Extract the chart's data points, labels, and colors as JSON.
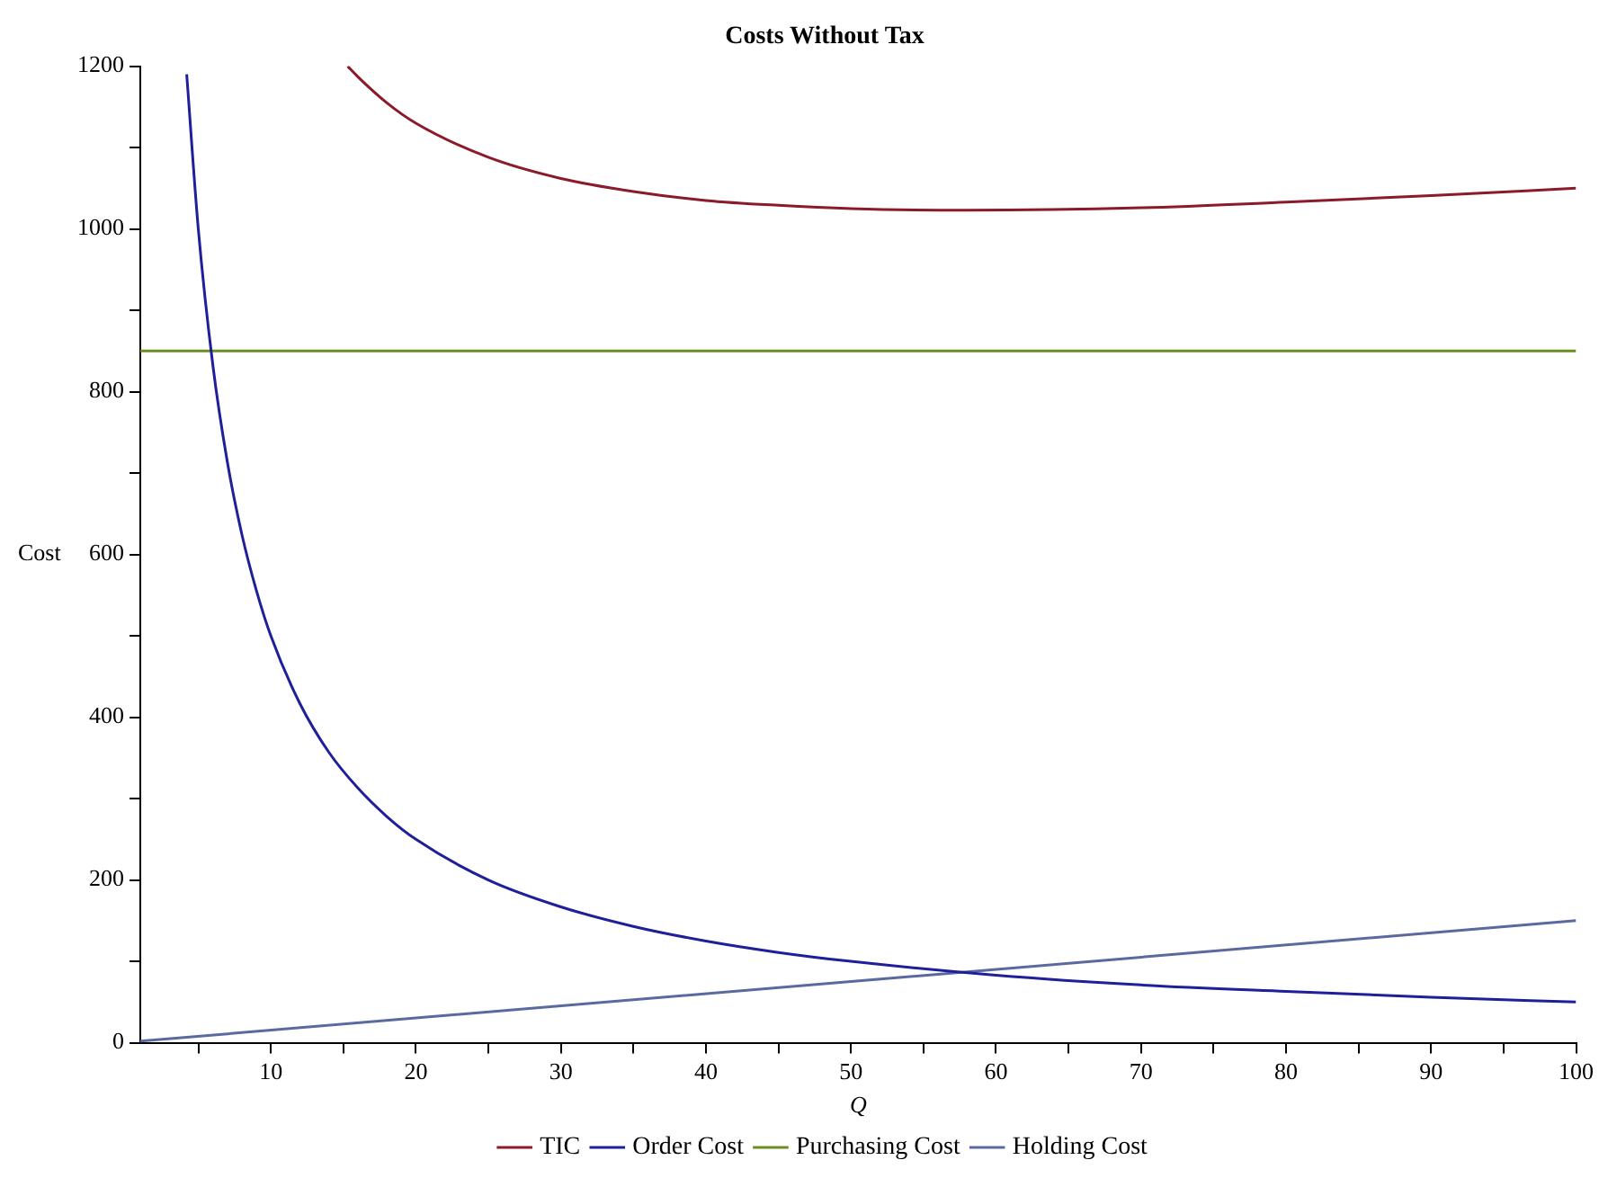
{
  "chart_data": {
    "type": "line",
    "title": "Costs Without Tax",
    "xlabel": "Q",
    "ylabel": "Cost",
    "xlim": [
      1,
      100
    ],
    "ylim": [
      0,
      1200
    ],
    "xticks": [
      {
        "value": 5,
        "label": null
      },
      10,
      {
        "value": 15,
        "label": null
      },
      20,
      {
        "value": 25,
        "label": null
      },
      30,
      {
        "value": 35,
        "label": null
      },
      40,
      {
        "value": 45,
        "label": null
      },
      50,
      {
        "value": 55,
        "label": null
      },
      60,
      {
        "value": 65,
        "label": null
      },
      70,
      {
        "value": 75,
        "label": null
      },
      80,
      {
        "value": 85,
        "label": null
      },
      90,
      {
        "value": 95,
        "label": null
      },
      100
    ],
    "yticks": [
      0,
      {
        "value": 100,
        "label": null
      },
      200,
      {
        "value": 300,
        "label": null
      },
      400,
      {
        "value": 500,
        "label": null
      },
      600,
      {
        "value": 700,
        "label": null
      },
      800,
      {
        "value": 900,
        "label": null
      },
      1000,
      {
        "value": 1100,
        "label": null
      },
      1200
    ],
    "grid": false,
    "legend": "bottom",
    "marker": "none",
    "line_style": "solid",
    "series": [
      {
        "name": "TIC",
        "color": "#8b1a2a",
        "x": [
          15.3,
          16,
          18,
          20,
          25,
          30,
          35,
          40,
          45,
          50,
          58,
          70,
          80,
          90,
          100
        ],
        "values": [
          1200,
          1187,
          1155,
          1130,
          1088,
          1062,
          1046,
          1035,
          1029,
          1025,
          1023,
          1026,
          1033,
          1041,
          1050
        ]
      },
      {
        "name": "Order Cost",
        "color": "#1f1f9a",
        "x": [
          4.2,
          5,
          6,
          7,
          8,
          9,
          10,
          12,
          14,
          16,
          18,
          20,
          25,
          30,
          35,
          40,
          45,
          50,
          60,
          70,
          80,
          90,
          100
        ],
        "values": [
          1190,
          1000,
          833,
          714,
          625,
          556,
          500,
          417,
          357,
          313,
          278,
          250,
          200,
          167,
          143,
          125,
          111,
          100,
          83,
          71,
          63,
          56,
          50
        ]
      },
      {
        "name": "Purchasing Cost",
        "color": "#6b8e23",
        "x": [
          1,
          100
        ],
        "values": [
          850,
          850
        ]
      },
      {
        "name": "Holding Cost",
        "color": "#5a6aa0",
        "x": [
          1,
          100
        ],
        "values": [
          2,
          150
        ]
      }
    ]
  }
}
